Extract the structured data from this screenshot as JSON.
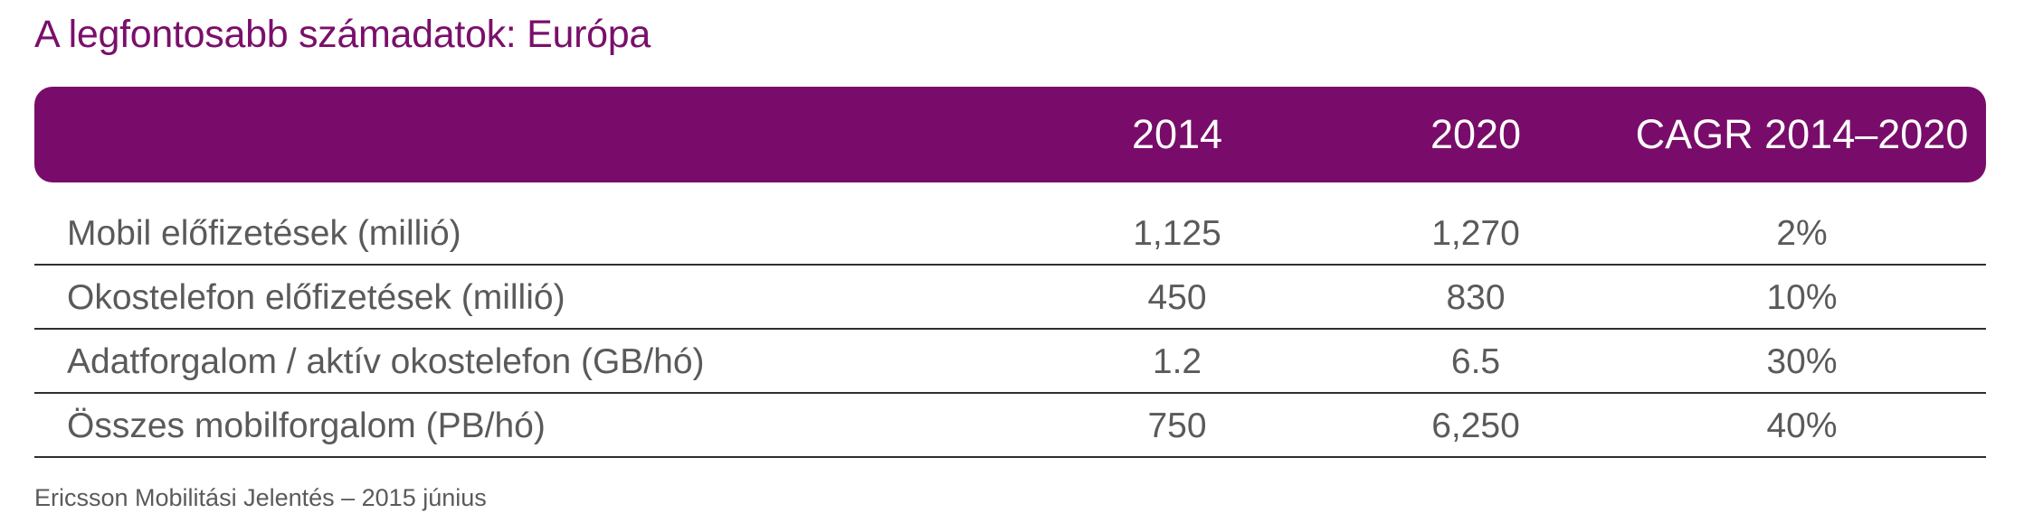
{
  "title": "A legfontosabb számadatok: Európa",
  "header": {
    "col_2014": "2014",
    "col_2020": "2020",
    "col_cagr": "CAGR 2014–2020"
  },
  "rows": [
    {
      "label": "Mobil előfizetések (millió)",
      "v2014": "1,125",
      "v2020": "1,270",
      "cagr": "2%"
    },
    {
      "label": "Okostelefon előfizetések (millió)",
      "v2014": "450",
      "v2020": "830",
      "cagr": "10%"
    },
    {
      "label": "Adatforgalom / aktív okostelefon (GB/hó)",
      "v2014": "1.2",
      "v2020": "6.5",
      "cagr": "30%"
    },
    {
      "label": "Összes mobilforgalom (PB/hó)",
      "v2014": "750",
      "v2020": "6,250",
      "cagr": "40%"
    }
  ],
  "footer": "Ericsson Mobilitási Jelentés – 2015 június",
  "colors": {
    "accent": "#790c6a",
    "title": "#7a0f6b",
    "text": "#5a5a5a",
    "rule": "#2f2f2f"
  }
}
